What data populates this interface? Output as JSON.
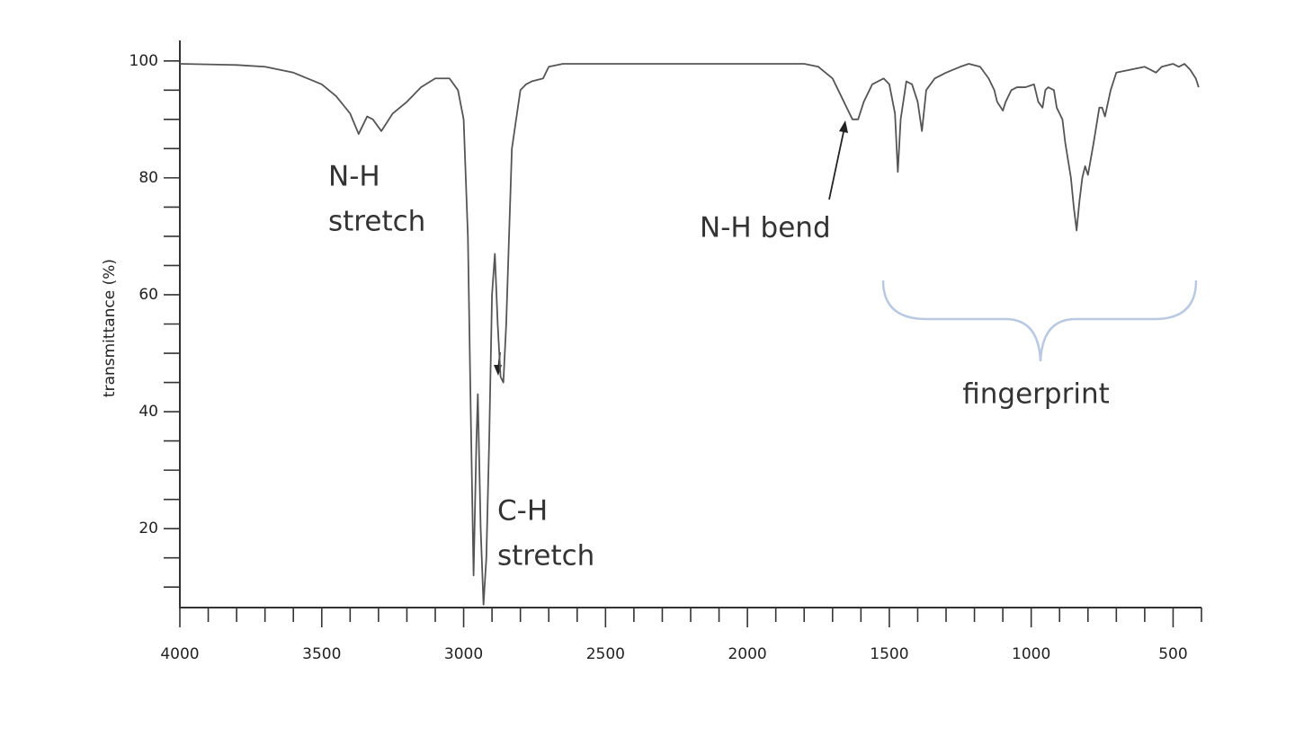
{
  "chart_data": {
    "type": "line",
    "y_label": "transmittance (%)",
    "color": "#555555",
    "xlim": [
      4000,
      400
    ],
    "ylim": [
      6.5,
      103.5
    ],
    "xticks": [
      4000,
      3500,
      3000,
      2500,
      2000,
      1500,
      1000,
      500
    ],
    "xminorticks": [
      3900,
      3800,
      3700,
      3600,
      3400,
      3300,
      3200,
      3100,
      2900,
      2800,
      2700,
      2600,
      2400,
      2300,
      2200,
      2100,
      1900,
      1800,
      1700,
      1600,
      1400,
      1300,
      1200,
      1100,
      900,
      800,
      700,
      600,
      400
    ],
    "yticks": [
      20,
      40,
      60,
      80,
      100
    ],
    "yminorticks": [
      10,
      15,
      25,
      30,
      35,
      45,
      50,
      55,
      65,
      70,
      75,
      85,
      90,
      95
    ],
    "x": [
      4000,
      3800,
      3700,
      3600,
      3500,
      3450,
      3400,
      3370,
      3340,
      3320,
      3290,
      3250,
      3200,
      3150,
      3100,
      3050,
      3020,
      3000,
      2985,
      2975,
      2965,
      2955,
      2950,
      2940,
      2930,
      2920,
      2910,
      2900,
      2890,
      2880,
      2870,
      2860,
      2850,
      2830,
      2800,
      2780,
      2760,
      2720,
      2700,
      2650,
      2000,
      1800,
      1750,
      1700,
      1660,
      1630,
      1610,
      1590,
      1560,
      1520,
      1500,
      1480,
      1470,
      1460,
      1440,
      1420,
      1400,
      1385,
      1370,
      1340,
      1300,
      1250,
      1220,
      1180,
      1150,
      1130,
      1120,
      1100,
      1090,
      1070,
      1050,
      1020,
      990,
      975,
      960,
      950,
      940,
      920,
      910,
      890,
      880,
      860,
      850,
      840,
      830,
      820,
      810,
      800,
      780,
      760,
      750,
      740,
      720,
      700,
      650,
      600,
      560,
      540,
      500,
      480,
      460,
      440,
      420,
      410
    ],
    "values": [
      99.5,
      99.3,
      99,
      98,
      96,
      94,
      91,
      87.5,
      90.5,
      90,
      88,
      91,
      93,
      95.5,
      97,
      97,
      95,
      90,
      70,
      40,
      12,
      35,
      43,
      20,
      7,
      15,
      35,
      60,
      67,
      55,
      46,
      45,
      55,
      85,
      95,
      96,
      96.5,
      97,
      99,
      99.5,
      99.5,
      99.5,
      99,
      97,
      93,
      90,
      90,
      93,
      96,
      97,
      96,
      91,
      81,
      90,
      96.5,
      96,
      93,
      88,
      95,
      97,
      98,
      99,
      99.5,
      99,
      97,
      95,
      93,
      91.5,
      93,
      95,
      95.5,
      95.5,
      96,
      93,
      92,
      95,
      95.5,
      95,
      92,
      90,
      86,
      80,
      75,
      71,
      76,
      80,
      82,
      80.5,
      86,
      92,
      92,
      90.5,
      95,
      98,
      98.5,
      99,
      98,
      99,
      99.5,
      99,
      99.5,
      98.5,
      97,
      95.5
    ],
    "annotations": [
      {
        "lines": [
          "N-H",
          "stretch"
        ]
      },
      {
        "lines": [
          "C-H",
          "stretch"
        ]
      },
      {
        "lines": [
          "N-H bend"
        ]
      },
      {
        "lines": [
          "fingerprint"
        ]
      }
    ]
  }
}
